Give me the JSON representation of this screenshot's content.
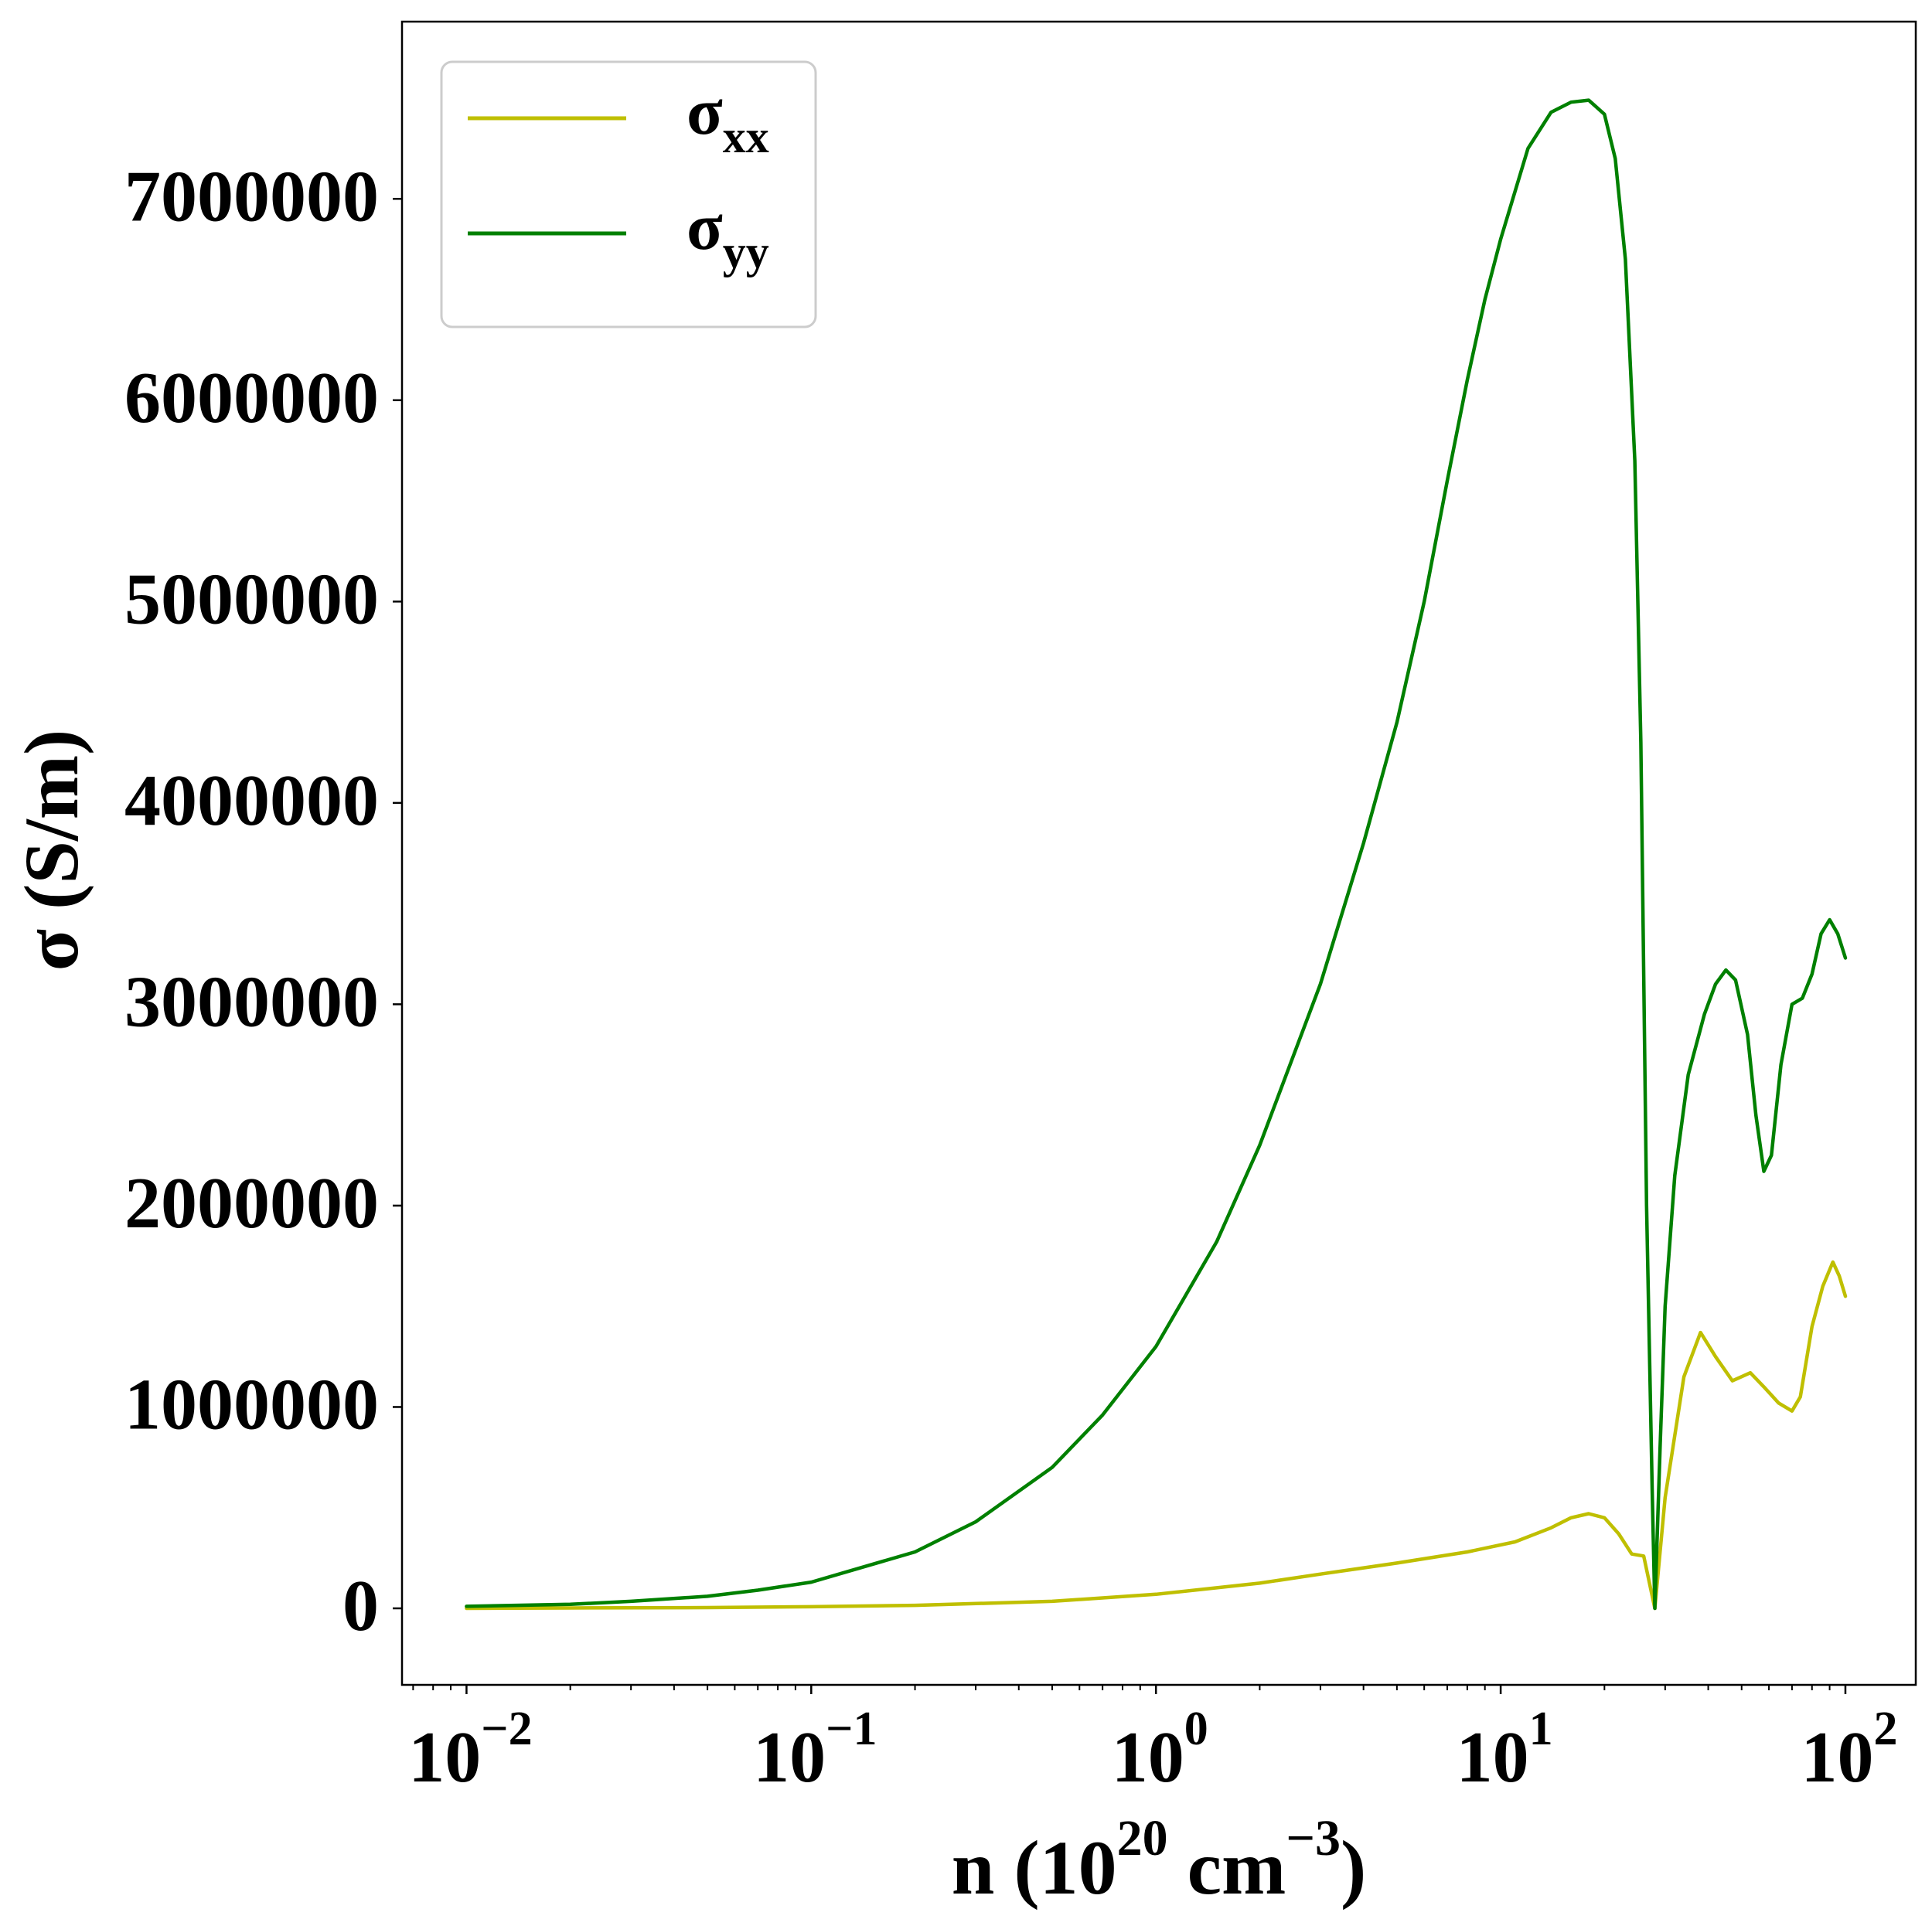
{
  "chart_data": {
    "type": "line",
    "xscale": "log",
    "xlim": [
      0.0065,
      160
    ],
    "ylim": [
      -380000,
      7880000
    ],
    "xlabel": {
      "base": "n (10",
      "sup1": "20",
      "mid": " cm",
      "sup2": "−3",
      "end": ")"
    },
    "ylabel": "σ (S/m)",
    "y_ticks": [
      {
        "value": 0,
        "label": "0"
      },
      {
        "value": 1000000,
        "label": "1000000"
      },
      {
        "value": 2000000,
        "label": "2000000"
      },
      {
        "value": 3000000,
        "label": "3000000"
      },
      {
        "value": 4000000,
        "label": "4000000"
      },
      {
        "value": 5000000,
        "label": "5000000"
      },
      {
        "value": 6000000,
        "label": "6000000"
      },
      {
        "value": 7000000,
        "label": "7000000"
      }
    ],
    "x_ticks": [
      {
        "value": 0.01,
        "base": "10",
        "exp": "−2"
      },
      {
        "value": 0.1,
        "base": "10",
        "exp": "−1"
      },
      {
        "value": 1,
        "base": "10",
        "exp": "0"
      },
      {
        "value": 10,
        "base": "10",
        "exp": "1"
      },
      {
        "value": 100,
        "base": "10",
        "exp": "2"
      }
    ],
    "legend": {
      "position": "upper-left",
      "entries": [
        {
          "symbol": "σ",
          "sub": "xx",
          "series": 0
        },
        {
          "symbol": "σ",
          "sub": "yy",
          "series": 1
        }
      ]
    },
    "series": [
      {
        "color": "#bfbf00",
        "points": [
          [
            0.01,
            0
          ],
          [
            0.02,
            2000
          ],
          [
            0.05,
            4000
          ],
          [
            0.1,
            8000
          ],
          [
            0.2,
            15000
          ],
          [
            0.5,
            35000
          ],
          [
            1,
            70000
          ],
          [
            2,
            125000
          ],
          [
            3,
            170000
          ],
          [
            5,
            225000
          ],
          [
            8,
            280000
          ],
          [
            11,
            330000
          ],
          [
            14,
            400000
          ],
          [
            16,
            450000
          ],
          [
            18,
            470000
          ],
          [
            20,
            450000
          ],
          [
            22,
            370000
          ],
          [
            24,
            270000
          ],
          [
            26,
            260000
          ],
          [
            28,
            0
          ],
          [
            30,
            550000
          ],
          [
            34,
            1150000
          ],
          [
            38,
            1370000
          ],
          [
            42,
            1250000
          ],
          [
            47,
            1130000
          ],
          [
            53,
            1170000
          ],
          [
            58,
            1100000
          ],
          [
            64,
            1020000
          ],
          [
            70,
            980000
          ],
          [
            74,
            1050000
          ],
          [
            80,
            1400000
          ],
          [
            86,
            1600000
          ],
          [
            92,
            1720000
          ],
          [
            96,
            1650000
          ],
          [
            100,
            1550000
          ]
        ]
      },
      {
        "color": "#008000",
        "points": [
          [
            0.01,
            10000
          ],
          [
            0.02,
            20000
          ],
          [
            0.03,
            35000
          ],
          [
            0.05,
            60000
          ],
          [
            0.07,
            90000
          ],
          [
            0.1,
            130000
          ],
          [
            0.2,
            280000
          ],
          [
            0.3,
            430000
          ],
          [
            0.5,
            700000
          ],
          [
            0.7,
            960000
          ],
          [
            1,
            1300000
          ],
          [
            1.5,
            1820000
          ],
          [
            2,
            2300000
          ],
          [
            3,
            3100000
          ],
          [
            4,
            3800000
          ],
          [
            5,
            4400000
          ],
          [
            6,
            5000000
          ],
          [
            7,
            5600000
          ],
          [
            8,
            6100000
          ],
          [
            9,
            6500000
          ],
          [
            10,
            6800000
          ],
          [
            12,
            7250000
          ],
          [
            14,
            7430000
          ],
          [
            16,
            7480000
          ],
          [
            18,
            7490000
          ],
          [
            20,
            7420000
          ],
          [
            21.5,
            7200000
          ],
          [
            23,
            6700000
          ],
          [
            24.5,
            5700000
          ],
          [
            25.5,
            4300000
          ],
          [
            26.5,
            2000000
          ],
          [
            27.5,
            600000
          ],
          [
            28,
            0
          ],
          [
            29,
            800000
          ],
          [
            30,
            1500000
          ],
          [
            32,
            2150000
          ],
          [
            35,
            2650000
          ],
          [
            39,
            2950000
          ],
          [
            42,
            3100000
          ],
          [
            45,
            3170000
          ],
          [
            48,
            3120000
          ],
          [
            52,
            2850000
          ],
          [
            55,
            2450000
          ],
          [
            58,
            2170000
          ],
          [
            61,
            2250000
          ],
          [
            65,
            2700000
          ],
          [
            70,
            3000000
          ],
          [
            75,
            3030000
          ],
          [
            80,
            3150000
          ],
          [
            85,
            3350000
          ],
          [
            90,
            3420000
          ],
          [
            95,
            3350000
          ],
          [
            100,
            3230000
          ]
        ]
      }
    ]
  }
}
